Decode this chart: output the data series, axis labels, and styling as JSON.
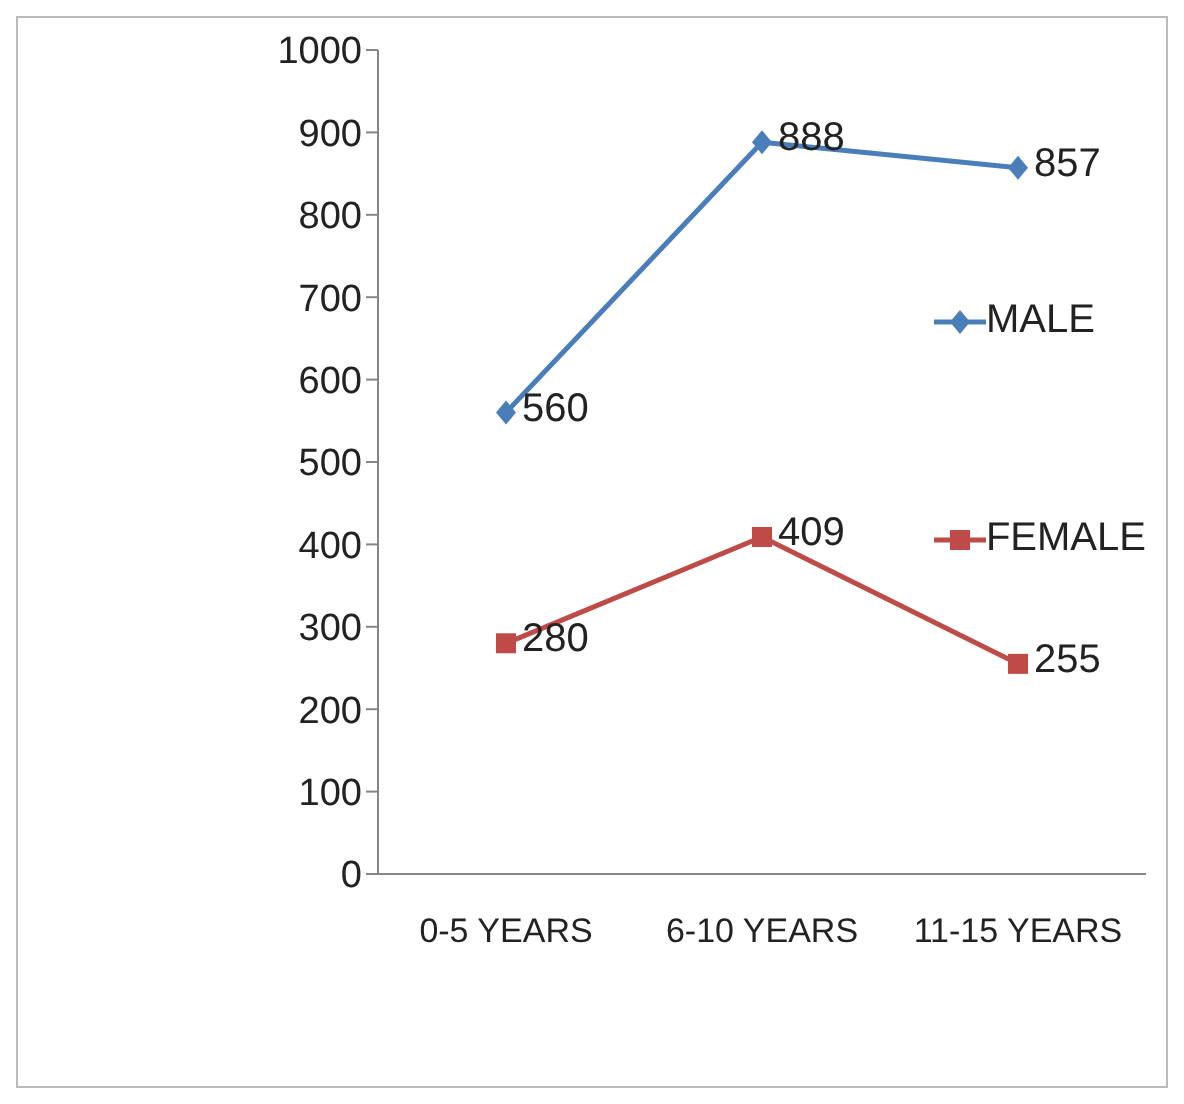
{
  "chart_data": {
    "type": "line",
    "categories": [
      "0-5 YEARS",
      "6-10 YEARS",
      "11-15 YEARS"
    ],
    "series": [
      {
        "name": "MALE",
        "color": "#4a7ebb",
        "marker": "diamond",
        "values": [
          560,
          888,
          857
        ]
      },
      {
        "name": "FEMALE",
        "color": "#be4b48",
        "marker": "square",
        "values": [
          280,
          409,
          255
        ]
      }
    ],
    "ylim": [
      0,
      1000
    ],
    "yticks": [
      0,
      100,
      200,
      300,
      400,
      500,
      600,
      700,
      800,
      900,
      1000
    ],
    "data_labels": true,
    "legend": "right",
    "grid": false
  }
}
